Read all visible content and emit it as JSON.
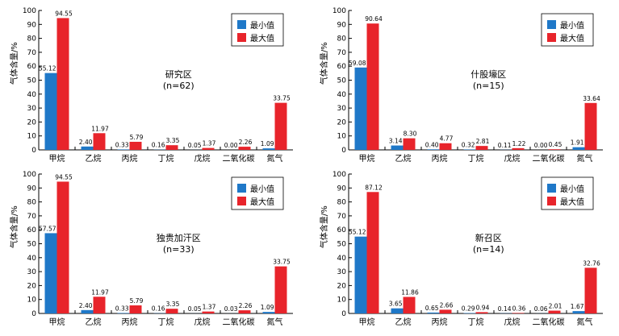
{
  "chart_data": [
    {
      "type": "bar",
      "title": "研究区",
      "subtitle": "(n=62)",
      "ylabel": "气体含量/%",
      "ylim": [
        0,
        100
      ],
      "yticks": [
        0,
        10,
        20,
        30,
        40,
        50,
        60,
        70,
        80,
        90,
        100
      ],
      "categories": [
        "甲烷",
        "乙烷",
        "丙烷",
        "丁烷",
        "戊烷",
        "二氧化碳",
        "氮气"
      ],
      "legend_position": "top-right",
      "series": [
        {
          "name": "最小值",
          "color": "#1f78c8",
          "values": [
            55.12,
            2.4,
            0.33,
            0.16,
            0.05,
            0.0,
            1.09
          ],
          "labels": [
            "55.12",
            "2.40",
            "0.33",
            "0.16",
            "0.05",
            "0.00",
            "1.09"
          ]
        },
        {
          "name": "最大值",
          "color": "#e8242b",
          "values": [
            94.55,
            11.97,
            5.79,
            3.35,
            1.37,
            2.26,
            33.75
          ],
          "labels": [
            "94.55",
            "11.97",
            "5.79",
            "3.35",
            "1.37",
            "2.26",
            "33.75"
          ]
        }
      ]
    },
    {
      "type": "bar",
      "title": "什股壕区",
      "subtitle": "(n=15)",
      "ylabel": "气体含量/%",
      "ylim": [
        0,
        100
      ],
      "yticks": [
        0,
        10,
        20,
        30,
        40,
        50,
        60,
        70,
        80,
        90,
        100
      ],
      "categories": [
        "甲烷",
        "乙烷",
        "丙烷",
        "丁烷",
        "戊烷",
        "二氧化碳",
        "氮气"
      ],
      "legend_position": "top-right",
      "series": [
        {
          "name": "最小值",
          "color": "#1f78c8",
          "values": [
            59.08,
            3.14,
            0.4,
            0.32,
            0.11,
            0.0,
            1.91
          ],
          "labels": [
            "59.08",
            "3.14",
            "0.40",
            "0.32",
            "0.11",
            "0.00",
            "1.91"
          ]
        },
        {
          "name": "最大值",
          "color": "#e8242b",
          "values": [
            90.64,
            8.3,
            4.77,
            2.81,
            1.22,
            0.45,
            33.64
          ],
          "labels": [
            "90.64",
            "8.30",
            "4.77",
            "2.81",
            "1.22",
            "0.45",
            "33.64"
          ]
        }
      ]
    },
    {
      "type": "bar",
      "title": "独贵加汗区",
      "subtitle": "(n=33)",
      "ylabel": "气体含量/%",
      "ylim": [
        0,
        100
      ],
      "yticks": [
        0,
        10,
        20,
        30,
        40,
        50,
        60,
        70,
        80,
        90,
        100
      ],
      "categories": [
        "甲烷",
        "乙烷",
        "丙烷",
        "丁烷",
        "戊烷",
        "二氧化碳",
        "氮气"
      ],
      "legend_position": "top-right",
      "series": [
        {
          "name": "最小值",
          "color": "#1f78c8",
          "values": [
            57.57,
            2.4,
            0.33,
            0.16,
            0.05,
            0.03,
            1.09
          ],
          "labels": [
            "57.57",
            "2.40",
            "0.33",
            "0.16",
            "0.05",
            "0.03",
            "1.09"
          ]
        },
        {
          "name": "最大值",
          "color": "#e8242b",
          "values": [
            94.55,
            11.97,
            5.79,
            3.35,
            1.37,
            2.26,
            33.75
          ],
          "labels": [
            "94.55",
            "11.97",
            "5.79",
            "3.35",
            "1.37",
            "2.26",
            "33.75"
          ]
        }
      ]
    },
    {
      "type": "bar",
      "title": "新召区",
      "subtitle": "(n=14)",
      "ylabel": "气体含量/%",
      "ylim": [
        0,
        100
      ],
      "yticks": [
        0,
        10,
        20,
        30,
        40,
        50,
        60,
        70,
        80,
        90,
        100
      ],
      "categories": [
        "甲烷",
        "乙烷",
        "丙烷",
        "丁烷",
        "戊烷",
        "二氧化碳",
        "氮气"
      ],
      "legend_position": "top-right",
      "series": [
        {
          "name": "最小值",
          "color": "#1f78c8",
          "values": [
            55.12,
            3.65,
            0.65,
            0.29,
            0.14,
            0.06,
            1.67
          ],
          "labels": [
            "55.12",
            "3.65",
            "0.65",
            "0.29",
            "0.14",
            "0.06",
            "1.67"
          ]
        },
        {
          "name": "最大值",
          "color": "#e8242b",
          "values": [
            87.12,
            11.86,
            2.66,
            0.94,
            0.36,
            2.01,
            32.76
          ],
          "labels": [
            "87.12",
            "11.86",
            "2.66",
            "0.94",
            "0.36",
            "2.01",
            "32.76"
          ]
        }
      ]
    }
  ]
}
